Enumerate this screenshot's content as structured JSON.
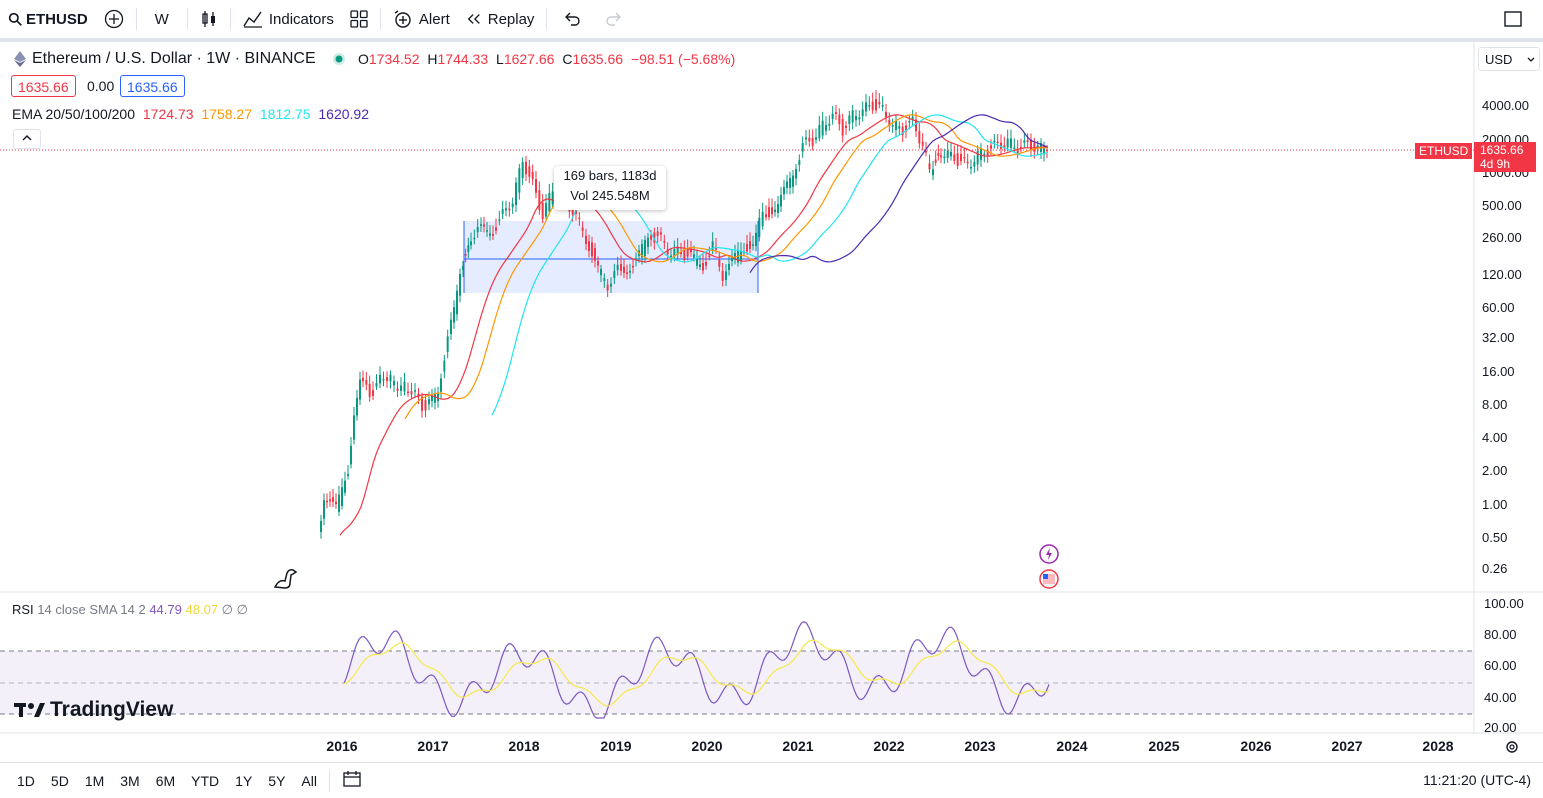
{
  "toolbar": {
    "symbol": "ETHUSD",
    "interval": "W",
    "indicators_label": "Indicators",
    "alert_label": "Alert",
    "replay_label": "Replay"
  },
  "legend": {
    "title": "Ethereum / U.S. Dollar · 1W · BINANCE",
    "o_label": "O",
    "o": "1734.52",
    "h_label": "H",
    "h": "1744.33",
    "l_label": "L",
    "l": "1627.66",
    "c_label": "C",
    "c": "1635.66",
    "change": "−98.51 (−5.68%)",
    "bid": "1635.66",
    "spread": "0.00",
    "ask": "1635.66"
  },
  "ema": {
    "label": "EMA 20/50/100/200",
    "v20": "1724.73",
    "v50": "1758.27",
    "v100": "1812.75",
    "v200": "1620.92",
    "c20": "#f23645",
    "c50": "#ff9800",
    "c100": "#22e5ef",
    "c200": "#4a2ab0"
  },
  "rsi": {
    "label": "RSI",
    "params": "14 close SMA 14 2",
    "v1": "44.79",
    "v2": "48.07",
    "na1": "∅",
    "na2": "∅",
    "c1": "#7e57c2",
    "c2": "#f7e84b"
  },
  "currency": "USD",
  "price_axis": [
    "4000.00",
    "2000.00",
    "1000.00",
    "500.00",
    "260.00",
    "120.00",
    "60.00",
    "32.00",
    "16.00",
    "8.00",
    "4.00",
    "2.00",
    "1.00",
    "0.50",
    "0.26"
  ],
  "rsi_axis": [
    "100.00",
    "80.00",
    "60.00",
    "40.00",
    "20.00"
  ],
  "last_price": {
    "symbol": "ETHUSD",
    "price": "1635.66",
    "countdown": "4d 9h"
  },
  "measure": {
    "bars": "169 bars, 1183d",
    "vol": "Vol 245.548M"
  },
  "years": [
    "2016",
    "2017",
    "2018",
    "2019",
    "2020",
    "2021",
    "2022",
    "2023",
    "2024",
    "2025",
    "2026",
    "2027",
    "2028"
  ],
  "timeframes": [
    "1D",
    "5D",
    "1M",
    "3M",
    "6M",
    "YTD",
    "1Y",
    "5Y",
    "All"
  ],
  "clock": "11:21:20 (UTC-4)",
  "logo_text": "TradingView",
  "colors": {
    "up": "#089981",
    "down": "#f23645",
    "accent": "#2962ff"
  }
}
